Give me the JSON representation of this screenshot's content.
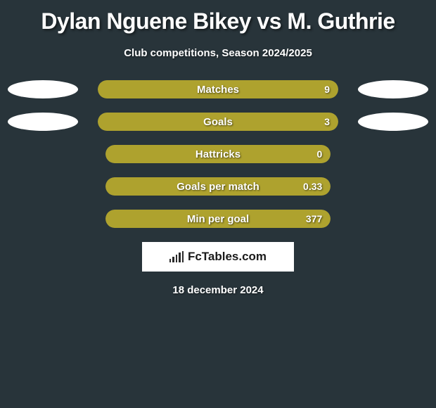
{
  "title": "Dylan Nguene Bikey vs M. Guthrie",
  "subtitle": "Club competitions, Season 2024/2025",
  "colors": {
    "background": "#28343a",
    "bar_track": "#3d4a50",
    "bar_fill": "#aea22e",
    "oval": "#ffffff",
    "text": "#ffffff"
  },
  "stats": [
    {
      "label": "Matches",
      "value": "9",
      "fill_pct": 100,
      "left_oval": true,
      "right_oval": true
    },
    {
      "label": "Goals",
      "value": "3",
      "fill_pct": 100,
      "left_oval": true,
      "right_oval": true
    },
    {
      "label": "Hattricks",
      "value": "0",
      "fill_pct": 100,
      "left_oval": false,
      "right_oval": false
    },
    {
      "label": "Goals per match",
      "value": "0.33",
      "fill_pct": 100,
      "left_oval": false,
      "right_oval": false
    },
    {
      "label": "Min per goal",
      "value": "377",
      "fill_pct": 100,
      "left_oval": false,
      "right_oval": false
    }
  ],
  "brand": "FcTables.com",
  "date": "18 december 2024",
  "typography": {
    "title_fontsize": 32,
    "subtitle_fontsize": 15,
    "label_fontsize": 15,
    "value_fontsize": 14,
    "date_fontsize": 15
  }
}
